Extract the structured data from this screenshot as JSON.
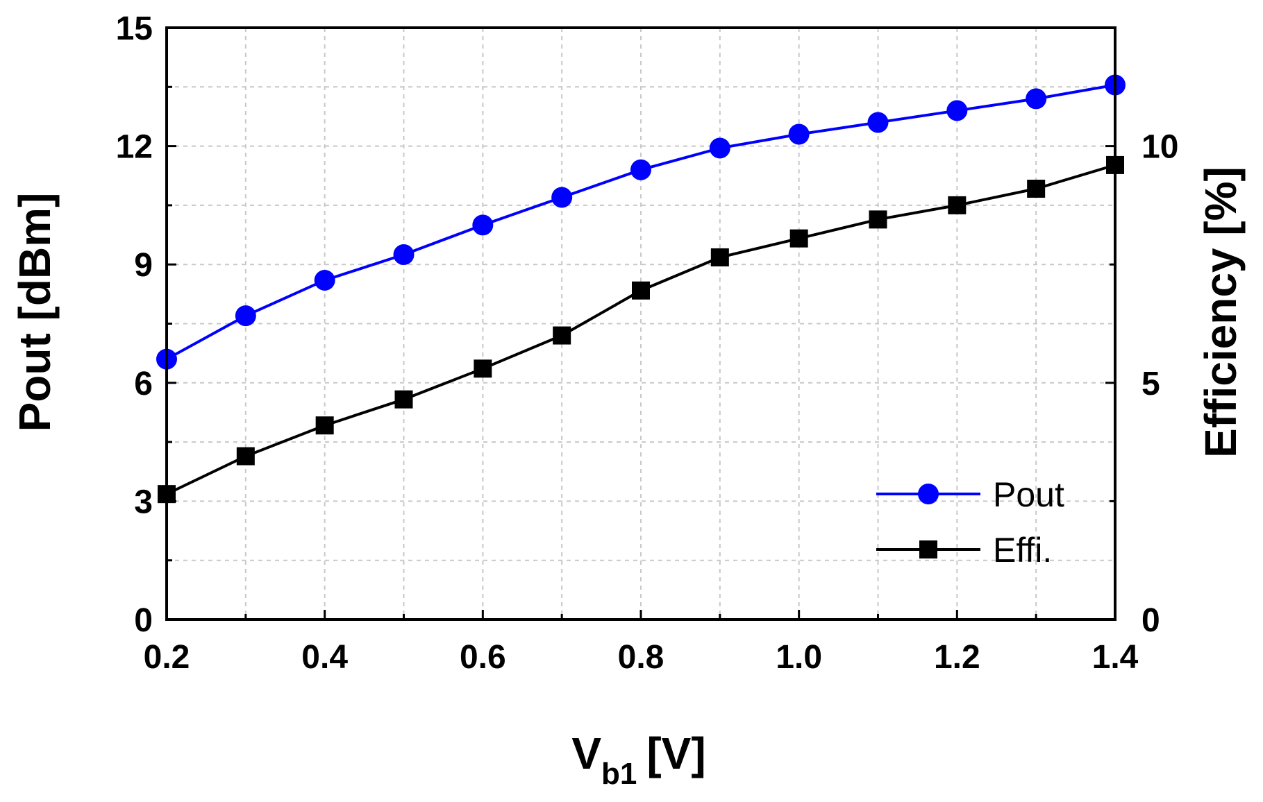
{
  "chart_data": {
    "type": "line",
    "title": "",
    "xlabel": "V",
    "xlabel_sub": "b1",
    "xlabel_unit": "[V]",
    "ylabel_left": "Pout [dBm]",
    "ylabel_right": "Efficiency [%]",
    "xlim": [
      0.2,
      1.4
    ],
    "ylim_left": [
      0,
      15
    ],
    "ylim_right": [
      0,
      12.5
    ],
    "xticks": [
      "0.2",
      "0.4",
      "0.6",
      "0.8",
      "1.0",
      "1.2",
      "1.4"
    ],
    "xtick_values": [
      0.2,
      0.4,
      0.6,
      0.8,
      1.0,
      1.2,
      1.4
    ],
    "yticks_left": [
      "0",
      "3",
      "6",
      "9",
      "12",
      "15"
    ],
    "ytick_values_left": [
      0,
      3,
      6,
      9,
      12,
      15
    ],
    "yticks_right": [
      "0",
      "5",
      "10"
    ],
    "ytick_values_right": [
      0,
      5,
      10
    ],
    "grid": true,
    "legend_position": "bottom-right",
    "x": [
      0.2,
      0.3,
      0.4,
      0.5,
      0.6,
      0.7,
      0.8,
      0.9,
      1.0,
      1.1,
      1.2,
      1.3,
      1.4
    ],
    "series": [
      {
        "name": "Pout",
        "axis": "left",
        "color": "#0000ff",
        "marker": "circle",
        "values": [
          6.6,
          7.7,
          8.6,
          9.25,
          10.0,
          10.7,
          11.4,
          11.95,
          12.3,
          12.6,
          12.9,
          13.2,
          13.55
        ]
      },
      {
        "name": "Effi.",
        "axis": "right",
        "color": "#000000",
        "marker": "square",
        "values": [
          2.65,
          3.45,
          4.1,
          4.65,
          5.3,
          6.0,
          6.95,
          7.65,
          8.05,
          8.45,
          8.75,
          9.1,
          9.6
        ]
      }
    ]
  }
}
